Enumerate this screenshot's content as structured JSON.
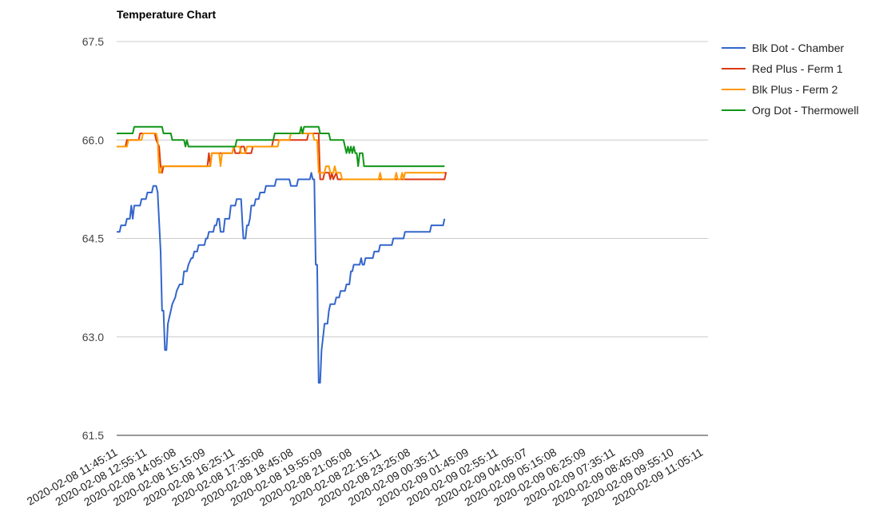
{
  "chart_data": {
    "type": "line",
    "title": "Temperature Chart",
    "ylim": [
      61.5,
      67.5
    ],
    "yticks": [
      "67.5",
      "66.0",
      "64.5",
      "63.0",
      "61.5"
    ],
    "grid": true,
    "legend_position": "right",
    "x_tick_labels": [
      "2020-02-08 11:45:11",
      "2020-02-08 12:55:11",
      "2020-02-08 14:05:08",
      "2020-02-08 15:15:09",
      "2020-02-08 16:25:11",
      "2020-02-08 17:35:08",
      "2020-02-08 18:45:08",
      "2020-02-08 19:55:09",
      "2020-02-08 21:05:08",
      "2020-02-08 22:15:11",
      "2020-02-08 23:25:08",
      "2020-02-09 00:35:11",
      "2020-02-09 01:45:09",
      "2020-02-09 02:55:11",
      "2020-02-09 04:05:07",
      "2020-02-09 05:15:08",
      "2020-02-09 06:25:09",
      "2020-02-09 07:35:11",
      "2020-02-09 08:45:09",
      "2020-02-09 09:55:10",
      "2020-02-09 11:05:11"
    ],
    "series": [
      {
        "name": "Blk Dot - Chamber",
        "color": "#3366cc",
        "points": [
          [
            0,
            64.6
          ],
          [
            0.1,
            64.6
          ],
          [
            0.15,
            64.7
          ],
          [
            0.3,
            64.7
          ],
          [
            0.35,
            64.8
          ],
          [
            0.45,
            64.8
          ],
          [
            0.5,
            65.0
          ],
          [
            0.55,
            64.8
          ],
          [
            0.6,
            65.0
          ],
          [
            0.8,
            65.0
          ],
          [
            0.85,
            65.1
          ],
          [
            1.0,
            65.1
          ],
          [
            1.05,
            65.2
          ],
          [
            1.2,
            65.2
          ],
          [
            1.25,
            65.3
          ],
          [
            1.35,
            65.3
          ],
          [
            1.4,
            65.2
          ],
          [
            1.5,
            64.3
          ],
          [
            1.55,
            63.4
          ],
          [
            1.6,
            63.4
          ],
          [
            1.65,
            62.8
          ],
          [
            1.7,
            62.8
          ],
          [
            1.75,
            63.2
          ],
          [
            1.85,
            63.4
          ],
          [
            1.9,
            63.5
          ],
          [
            2.0,
            63.6
          ],
          [
            2.05,
            63.7
          ],
          [
            2.15,
            63.8
          ],
          [
            2.25,
            63.8
          ],
          [
            2.3,
            64.0
          ],
          [
            2.4,
            64.0
          ],
          [
            2.45,
            64.1
          ],
          [
            2.55,
            64.2
          ],
          [
            2.6,
            64.2
          ],
          [
            2.65,
            64.3
          ],
          [
            2.75,
            64.3
          ],
          [
            2.8,
            64.4
          ],
          [
            3.0,
            64.4
          ],
          [
            3.05,
            64.5
          ],
          [
            3.1,
            64.5
          ],
          [
            3.15,
            64.6
          ],
          [
            3.3,
            64.6
          ],
          [
            3.35,
            64.7
          ],
          [
            3.4,
            64.7
          ],
          [
            3.45,
            64.8
          ],
          [
            3.5,
            64.8
          ],
          [
            3.55,
            64.6
          ],
          [
            3.65,
            64.6
          ],
          [
            3.7,
            64.8
          ],
          [
            3.85,
            64.8
          ],
          [
            3.9,
            65.0
          ],
          [
            4.05,
            65.0
          ],
          [
            4.1,
            65.1
          ],
          [
            4.25,
            65.1
          ],
          [
            4.3,
            64.7
          ],
          [
            4.33,
            64.5
          ],
          [
            4.4,
            64.5
          ],
          [
            4.45,
            64.7
          ],
          [
            4.5,
            64.7
          ],
          [
            4.55,
            64.8
          ],
          [
            4.6,
            65.0
          ],
          [
            4.7,
            65.0
          ],
          [
            4.75,
            65.1
          ],
          [
            4.85,
            65.1
          ],
          [
            4.9,
            65.2
          ],
          [
            5.05,
            65.2
          ],
          [
            5.1,
            65.3
          ],
          [
            5.4,
            65.3
          ],
          [
            5.45,
            65.4
          ],
          [
            5.9,
            65.4
          ],
          [
            5.95,
            65.3
          ],
          [
            6.15,
            65.3
          ],
          [
            6.2,
            65.4
          ],
          [
            6.6,
            65.4
          ],
          [
            6.65,
            65.5
          ],
          [
            6.7,
            65.4
          ],
          [
            6.75,
            65.4
          ],
          [
            6.8,
            64.1
          ],
          [
            6.85,
            64.1
          ],
          [
            6.9,
            62.3
          ],
          [
            6.95,
            62.3
          ],
          [
            7.0,
            62.8
          ],
          [
            7.05,
            63.0
          ],
          [
            7.1,
            63.2
          ],
          [
            7.2,
            63.2
          ],
          [
            7.25,
            63.4
          ],
          [
            7.3,
            63.5
          ],
          [
            7.45,
            63.5
          ],
          [
            7.5,
            63.6
          ],
          [
            7.6,
            63.6
          ],
          [
            7.65,
            63.7
          ],
          [
            7.8,
            63.7
          ],
          [
            7.85,
            63.8
          ],
          [
            7.95,
            63.8
          ],
          [
            8.0,
            64.0
          ],
          [
            8.05,
            64.0
          ],
          [
            8.1,
            64.1
          ],
          [
            8.3,
            64.1
          ],
          [
            8.35,
            64.2
          ],
          [
            8.4,
            64.1
          ],
          [
            8.45,
            64.1
          ],
          [
            8.5,
            64.2
          ],
          [
            8.75,
            64.2
          ],
          [
            8.8,
            64.3
          ],
          [
            8.95,
            64.3
          ],
          [
            9.0,
            64.4
          ],
          [
            9.4,
            64.4
          ],
          [
            9.45,
            64.5
          ],
          [
            9.8,
            64.5
          ],
          [
            9.85,
            64.6
          ],
          [
            10.7,
            64.6
          ],
          [
            10.75,
            64.7
          ],
          [
            11.15,
            64.7
          ],
          [
            11.2,
            64.8
          ]
        ]
      },
      {
        "name": "Red Plus - Ferm 1",
        "color": "#dc3912",
        "points": [
          [
            0,
            65.9
          ],
          [
            0.3,
            65.9
          ],
          [
            0.35,
            66.0
          ],
          [
            0.75,
            66.0
          ],
          [
            0.8,
            66.1
          ],
          [
            1.3,
            66.1
          ],
          [
            1.35,
            66.0
          ],
          [
            1.45,
            65.9
          ],
          [
            1.5,
            65.6
          ],
          [
            1.55,
            65.5
          ],
          [
            1.6,
            65.6
          ],
          [
            3.1,
            65.6
          ],
          [
            3.15,
            65.8
          ],
          [
            3.2,
            65.6
          ],
          [
            3.25,
            65.8
          ],
          [
            3.95,
            65.8
          ],
          [
            4.0,
            65.9
          ],
          [
            4.05,
            65.8
          ],
          [
            4.2,
            65.8
          ],
          [
            4.25,
            65.9
          ],
          [
            4.35,
            65.9
          ],
          [
            4.4,
            65.8
          ],
          [
            4.6,
            65.8
          ],
          [
            4.65,
            65.9
          ],
          [
            5.3,
            65.9
          ],
          [
            5.35,
            66.0
          ],
          [
            6.5,
            66.0
          ],
          [
            6.55,
            66.1
          ],
          [
            6.9,
            66.1
          ],
          [
            6.95,
            65.4
          ],
          [
            7.05,
            65.4
          ],
          [
            7.1,
            65.5
          ],
          [
            7.25,
            65.5
          ],
          [
            7.3,
            65.4
          ],
          [
            7.35,
            65.5
          ],
          [
            7.4,
            65.4
          ],
          [
            7.5,
            65.5
          ],
          [
            7.55,
            65.4
          ],
          [
            11.2,
            65.4
          ],
          [
            11.25,
            65.5
          ],
          [
            11.2,
            65.5
          ]
        ]
      },
      {
        "name": "Blk Plus - Ferm 2",
        "color": "#ff9900",
        "points": [
          [
            0,
            65.9
          ],
          [
            0.35,
            65.9
          ],
          [
            0.4,
            66.0
          ],
          [
            0.85,
            66.0
          ],
          [
            0.9,
            66.1
          ],
          [
            1.35,
            66.1
          ],
          [
            1.4,
            66.0
          ],
          [
            1.45,
            65.5
          ],
          [
            1.5,
            65.5
          ],
          [
            1.55,
            65.6
          ],
          [
            3.2,
            65.6
          ],
          [
            3.25,
            65.8
          ],
          [
            3.5,
            65.8
          ],
          [
            3.55,
            65.6
          ],
          [
            3.6,
            65.8
          ],
          [
            3.95,
            65.8
          ],
          [
            4.0,
            65.9
          ],
          [
            4.2,
            65.9
          ],
          [
            4.25,
            65.8
          ],
          [
            4.4,
            65.8
          ],
          [
            4.45,
            65.9
          ],
          [
            5.5,
            65.9
          ],
          [
            5.55,
            66.0
          ],
          [
            5.9,
            66.0
          ],
          [
            5.95,
            66.1
          ],
          [
            6.7,
            66.1
          ],
          [
            6.75,
            66.0
          ],
          [
            6.85,
            66.0
          ],
          [
            6.9,
            65.5
          ],
          [
            7.1,
            65.5
          ],
          [
            7.15,
            65.6
          ],
          [
            7.25,
            65.6
          ],
          [
            7.3,
            65.5
          ],
          [
            7.4,
            65.5
          ],
          [
            7.45,
            65.6
          ],
          [
            7.5,
            65.5
          ],
          [
            7.65,
            65.5
          ],
          [
            7.7,
            65.4
          ],
          [
            8.95,
            65.4
          ],
          [
            9.0,
            65.5
          ],
          [
            9.05,
            65.4
          ],
          [
            9.5,
            65.4
          ],
          [
            9.55,
            65.5
          ],
          [
            9.6,
            65.4
          ],
          [
            9.7,
            65.4
          ],
          [
            9.75,
            65.5
          ],
          [
            9.8,
            65.4
          ],
          [
            9.85,
            65.5
          ],
          [
            11.2,
            65.5
          ]
        ]
      },
      {
        "name": "Org Dot - Thermowell",
        "color": "#109618",
        "points": [
          [
            0,
            66.1
          ],
          [
            0.55,
            66.1
          ],
          [
            0.6,
            66.2
          ],
          [
            1.55,
            66.2
          ],
          [
            1.6,
            66.1
          ],
          [
            1.85,
            66.1
          ],
          [
            1.9,
            66.0
          ],
          [
            2.3,
            66.0
          ],
          [
            2.35,
            65.9
          ],
          [
            2.4,
            66.0
          ],
          [
            2.45,
            65.9
          ],
          [
            4.05,
            65.9
          ],
          [
            4.1,
            66.0
          ],
          [
            5.35,
            66.0
          ],
          [
            5.4,
            66.1
          ],
          [
            6.25,
            66.1
          ],
          [
            6.3,
            66.2
          ],
          [
            6.35,
            66.1
          ],
          [
            6.4,
            66.2
          ],
          [
            6.9,
            66.2
          ],
          [
            6.95,
            66.1
          ],
          [
            7.25,
            66.1
          ],
          [
            7.3,
            66.0
          ],
          [
            7.75,
            66.0
          ],
          [
            7.8,
            65.9
          ],
          [
            7.85,
            65.8
          ],
          [
            7.9,
            65.9
          ],
          [
            7.95,
            65.8
          ],
          [
            8.0,
            65.9
          ],
          [
            8.05,
            65.8
          ],
          [
            8.1,
            65.9
          ],
          [
            8.15,
            65.8
          ],
          [
            8.2,
            65.8
          ],
          [
            8.25,
            65.6
          ],
          [
            8.3,
            65.8
          ],
          [
            8.4,
            65.8
          ],
          [
            8.45,
            65.6
          ],
          [
            11.2,
            65.6
          ]
        ]
      }
    ]
  }
}
